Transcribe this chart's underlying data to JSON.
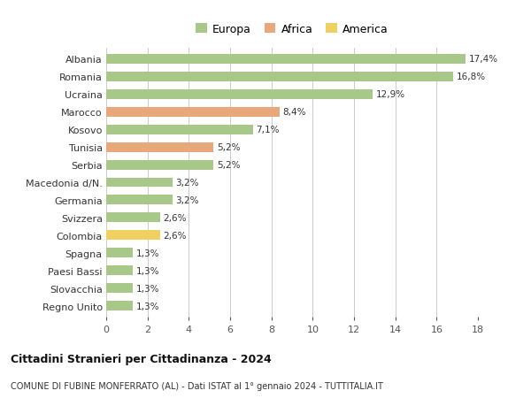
{
  "categories": [
    "Albania",
    "Romania",
    "Ucraina",
    "Marocco",
    "Kosovo",
    "Tunisia",
    "Serbia",
    "Macedonia d/N.",
    "Germania",
    "Svizzera",
    "Colombia",
    "Spagna",
    "Paesi Bassi",
    "Slovacchia",
    "Regno Unito"
  ],
  "values": [
    17.4,
    16.8,
    12.9,
    8.4,
    7.1,
    5.2,
    5.2,
    3.2,
    3.2,
    2.6,
    2.6,
    1.3,
    1.3,
    1.3,
    1.3
  ],
  "labels": [
    "17,4%",
    "16,8%",
    "12,9%",
    "8,4%",
    "7,1%",
    "5,2%",
    "5,2%",
    "3,2%",
    "3,2%",
    "2,6%",
    "2,6%",
    "1,3%",
    "1,3%",
    "1,3%",
    "1,3%"
  ],
  "continents": [
    "Europa",
    "Europa",
    "Europa",
    "Africa",
    "Europa",
    "Africa",
    "Europa",
    "Europa",
    "Europa",
    "Europa",
    "America",
    "Europa",
    "Europa",
    "Europa",
    "Europa"
  ],
  "colors": {
    "Europa": "#a8c88a",
    "Africa": "#e8a87c",
    "America": "#f0d060"
  },
  "title1": "Cittadini Stranieri per Cittadinanza - 2024",
  "title2": "COMUNE DI FUBINE MONFERRATO (AL) - Dati ISTAT al 1° gennaio 2024 - TUTTITALIA.IT",
  "xlim": [
    0,
    18
  ],
  "xticks": [
    0,
    2,
    4,
    6,
    8,
    10,
    12,
    14,
    16,
    18
  ],
  "background_color": "#ffffff",
  "grid_color": "#cccccc"
}
